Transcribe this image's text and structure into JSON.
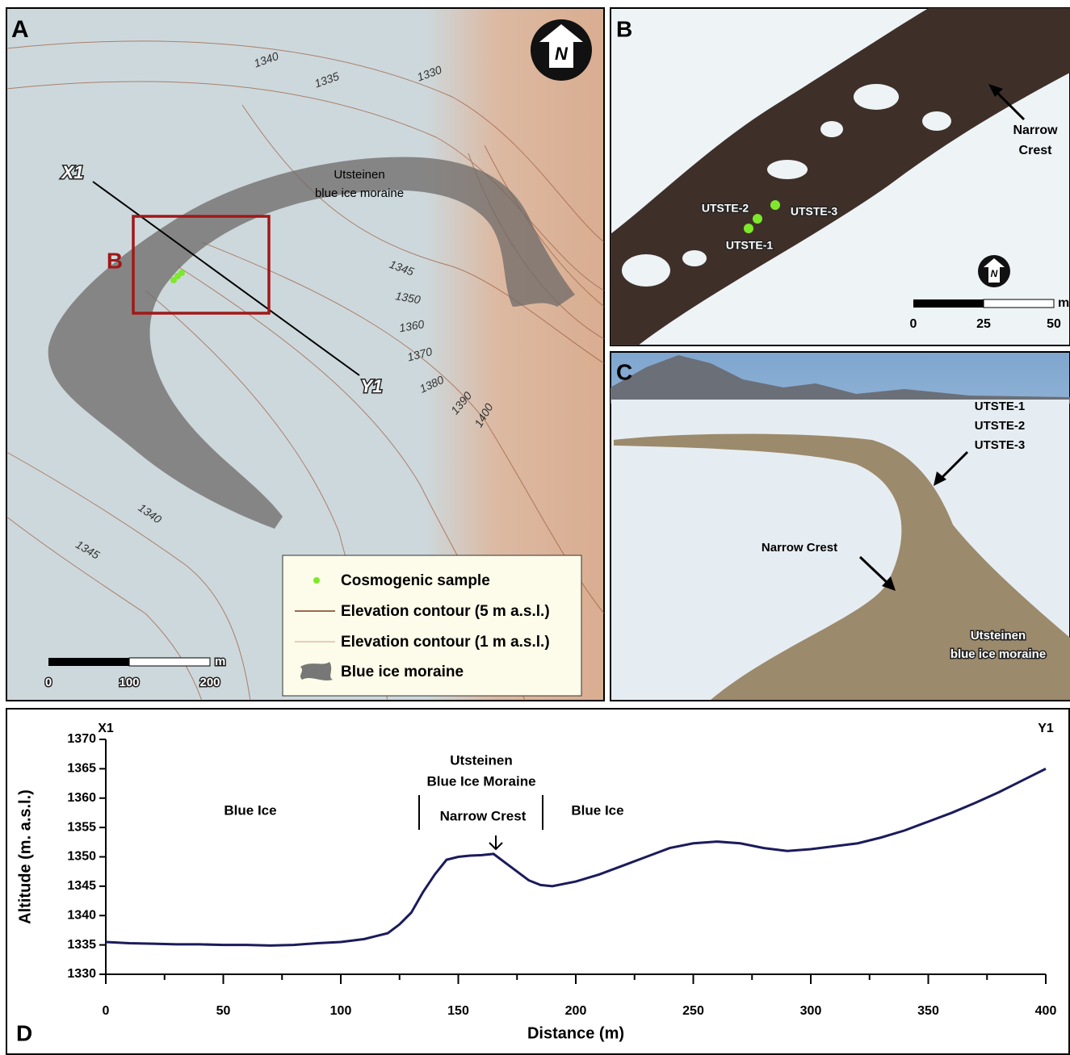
{
  "panel_a": {
    "label": "A",
    "north": "N",
    "contour_labels": [
      "1340",
      "1335",
      "1330",
      "1345",
      "1350",
      "1360",
      "1370",
      "1380",
      "1390",
      "1400",
      "1340",
      "1345"
    ],
    "profile_start": "X1",
    "profile_end": "Y1",
    "inset_label": "B",
    "moraine_label": [
      "Utsteinen",
      "blue ice moraine"
    ],
    "legend": [
      "Cosmogenic sample",
      "Elevation contour (5 m a.s.l.)",
      "Elevation contour (1 m a.s.l.)",
      "Blue ice moraine"
    ],
    "scale_labels": [
      "0",
      "100",
      "200"
    ],
    "scale_unit": "m"
  },
  "panel_b": {
    "label": "B",
    "north": "N",
    "crest_label": [
      "Narrow",
      "Crest"
    ],
    "samples": [
      "UTSTE-1",
      "UTSTE-2",
      "UTSTE-3"
    ],
    "scale_labels": [
      "0",
      "25",
      "50"
    ],
    "scale_unit": "m"
  },
  "panel_c": {
    "label": "C",
    "samples": [
      "UTSTE-1",
      "UTSTE-2",
      "UTSTE-3"
    ],
    "crest_label": "Narrow Crest",
    "moraine_label": [
      "Utsteinen",
      "blue ice moraine"
    ]
  },
  "chart_data": {
    "type": "line",
    "panel_label": "D",
    "start_label": "X1",
    "end_label": "Y1",
    "xlabel": "Distance (m)",
    "ylabel": "Altitude (m. a.s.l.)",
    "annotations": [
      "Blue Ice",
      "Utsteinen",
      "Blue Ice Moraine",
      "Narrow Crest",
      "Blue Ice"
    ],
    "color": "#1b1b5c",
    "x": [
      0,
      10,
      20,
      30,
      40,
      50,
      60,
      70,
      80,
      90,
      100,
      110,
      115,
      120,
      125,
      130,
      135,
      140,
      145,
      150,
      155,
      160,
      165,
      170,
      175,
      180,
      185,
      190,
      200,
      210,
      220,
      230,
      240,
      250,
      260,
      270,
      280,
      290,
      300,
      310,
      320,
      330,
      340,
      350,
      360,
      370,
      380,
      390,
      400
    ],
    "values": [
      1335.5,
      1335.3,
      1335.2,
      1335.1,
      1335.1,
      1335,
      1335,
      1334.9,
      1335,
      1335.3,
      1335.5,
      1336,
      1336.5,
      1337,
      1338.5,
      1340.5,
      1344,
      1347,
      1349.5,
      1350,
      1350.2,
      1350.3,
      1350.5,
      1349,
      1347.5,
      1346,
      1345.2,
      1345,
      1345.8,
      1347,
      1348.5,
      1350,
      1351.5,
      1352.3,
      1352.6,
      1352.3,
      1351.5,
      1351,
      1351.3,
      1351.8,
      1352.3,
      1353.3,
      1354.5,
      1356,
      1357.5,
      1359.2,
      1361,
      1363,
      1365
    ],
    "xlim": [
      0,
      400
    ],
    "ylim": [
      1330,
      1370
    ],
    "xticks": [
      0,
      50,
      100,
      150,
      200,
      250,
      300,
      350,
      400
    ],
    "yticks": [
      1330,
      1335,
      1340,
      1345,
      1350,
      1355,
      1360,
      1365,
      1370
    ]
  }
}
